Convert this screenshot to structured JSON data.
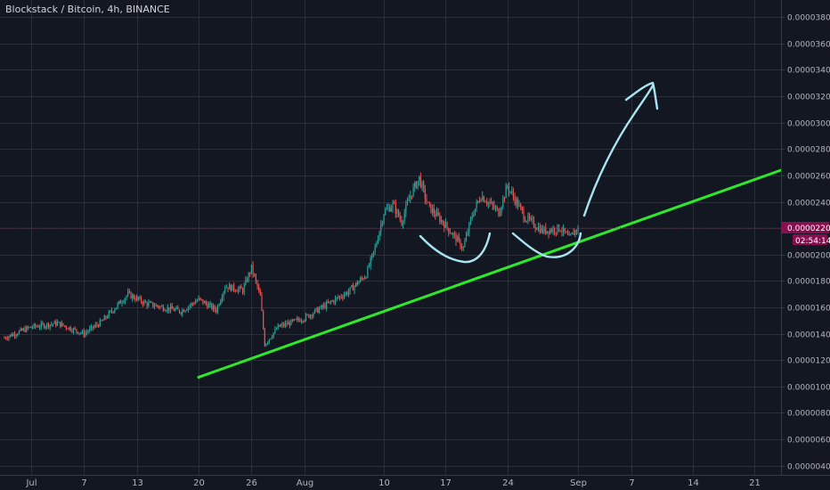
{
  "header": {
    "symbol": "Blockstack / Bitcoin, 4h, BINANCE"
  },
  "colors": {
    "background": "#131722",
    "grid": "#2a2e39",
    "up_candle": "#26a69a",
    "down_candle": "#ef5350",
    "trendline": "#2ee82b",
    "drawing": "#a9e4f2",
    "price_badge": "#880e4f",
    "price_line": "#8b1a44"
  },
  "price_badge": {
    "price": "0.00002208",
    "countdown": "02:54:14"
  },
  "chart_data": {
    "type": "candlestick",
    "title": "Blockstack / Bitcoin, 4h, BINANCE",
    "xlabel": "",
    "ylabel": "",
    "x_ticks": [
      "Jul",
      "7",
      "13",
      "20",
      "26",
      "Aug",
      "10",
      "17",
      "24",
      "Sep",
      "7",
      "14",
      "21"
    ],
    "x_tick_days": [
      0,
      6,
      12,
      19,
      25,
      31,
      40,
      47,
      54,
      62,
      68,
      75,
      82
    ],
    "y_ticks": [
      "0.00000400",
      "0.00000600",
      "0.00000800",
      "0.00001000",
      "0.00001200",
      "0.00001400",
      "0.00001600",
      "0.00001800",
      "0.00002000",
      "0.00002200",
      "0.00002400",
      "0.00002600",
      "0.00002800",
      "0.00003000",
      "0.00003200",
      "0.00003400",
      "0.00003600",
      "0.00003800"
    ],
    "y_tick_values": [
      4e-06,
      6e-06,
      8e-06,
      1e-05,
      1.2e-05,
      1.4e-05,
      1.6e-05,
      1.8e-05,
      2e-05,
      2.2e-05,
      2.4e-05,
      2.6e-05,
      2.8e-05,
      3e-05,
      3.2e-05,
      3.4e-05,
      3.6e-05,
      3.8e-05
    ],
    "ylim": [
      3.3e-06,
      3.93e-05
    ],
    "xlim_days": [
      -3.5,
      85
    ],
    "last_price": 2.208e-05,
    "grid": true,
    "approximate_close_path": [
      {
        "day": -3,
        "price": 1.37e-05
      },
      {
        "day": 0,
        "price": 1.45e-05
      },
      {
        "day": 3,
        "price": 1.48e-05
      },
      {
        "day": 6,
        "price": 1.4e-05
      },
      {
        "day": 8,
        "price": 1.49e-05
      },
      {
        "day": 10,
        "price": 1.63e-05
      },
      {
        "day": 11,
        "price": 1.7e-05
      },
      {
        "day": 13,
        "price": 1.63e-05
      },
      {
        "day": 17,
        "price": 1.57e-05
      },
      {
        "day": 19,
        "price": 1.66e-05
      },
      {
        "day": 21,
        "price": 1.58e-05
      },
      {
        "day": 22,
        "price": 1.76e-05
      },
      {
        "day": 24,
        "price": 1.73e-05
      },
      {
        "day": 25,
        "price": 1.9e-05
      },
      {
        "day": 26,
        "price": 1.68e-05
      },
      {
        "day": 26.5,
        "price": 1.32e-05
      },
      {
        "day": 28,
        "price": 1.45e-05
      },
      {
        "day": 31,
        "price": 1.52e-05
      },
      {
        "day": 33,
        "price": 1.6e-05
      },
      {
        "day": 36,
        "price": 1.72e-05
      },
      {
        "day": 38,
        "price": 1.85e-05
      },
      {
        "day": 39,
        "price": 2.05e-05
      },
      {
        "day": 40,
        "price": 2.32e-05
      },
      {
        "day": 41,
        "price": 2.38e-05
      },
      {
        "day": 42,
        "price": 2.25e-05
      },
      {
        "day": 43,
        "price": 2.45e-05
      },
      {
        "day": 44,
        "price": 2.58e-05
      },
      {
        "day": 45,
        "price": 2.37e-05
      },
      {
        "day": 47,
        "price": 2.22e-05
      },
      {
        "day": 49,
        "price": 2.05e-05
      },
      {
        "day": 50,
        "price": 2.3e-05
      },
      {
        "day": 51,
        "price": 2.45e-05
      },
      {
        "day": 53,
        "price": 2.32e-05
      },
      {
        "day": 54,
        "price": 2.52e-05
      },
      {
        "day": 55,
        "price": 2.4e-05
      },
      {
        "day": 56,
        "price": 2.28e-05
      },
      {
        "day": 58,
        "price": 2.18e-05
      },
      {
        "day": 60,
        "price": 2.2e-05
      },
      {
        "day": 61,
        "price": 2.12e-05
      },
      {
        "day": 62,
        "price": 2.21e-05
      }
    ],
    "trendline": {
      "start": {
        "day": 19,
        "price": 1.07e-05
      },
      "end": {
        "day": 85,
        "price": 2.64e-05
      }
    }
  }
}
